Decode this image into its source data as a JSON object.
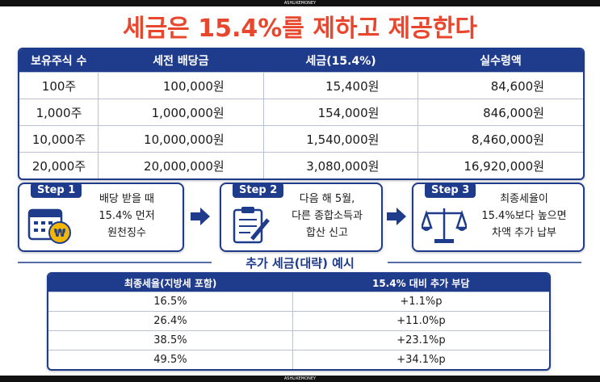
{
  "watermark_top": "ASHLIKEMONEY",
  "watermark_bottom": "ASHLIKEMONEY",
  "header": {
    "title": "세금은 15.4%를 제하고 제공한다"
  },
  "table": {
    "columns": [
      "보유주식 수",
      "세전 배당금",
      "세금(15.4%)",
      "실수령액"
    ],
    "rows": [
      [
        "100주",
        "100,000원",
        "15,400원",
        "84,600원"
      ],
      [
        "1,000주",
        "1,000,000원",
        "154,000원",
        "846,000원"
      ],
      [
        "10,000주",
        "10,000,000원",
        "1,540,000원",
        "8,460,000원"
      ],
      [
        "20,000주",
        "20,000,000원",
        "3,080,000원",
        "16,920,000원"
      ]
    ]
  },
  "steps": [
    {
      "badge": "Step 1",
      "lines": [
        "배당 받을 때",
        "15.4% 먼저",
        "원천징수"
      ]
    },
    {
      "badge": "Step 2",
      "lines": [
        "다음 해 5월,",
        "다른 종합소득과",
        "합산 신고"
      ]
    },
    {
      "badge": "Step 3",
      "lines": [
        "최종세율이",
        "15.4%보다 높으면",
        "차액 추가 납부"
      ]
    }
  ],
  "section": {
    "title": "추가 세금(대략) 예시"
  },
  "table2": {
    "columns": [
      "최종세율(지방세 포함)",
      "15.4% 대비 추가 부담"
    ],
    "rows": [
      [
        "16.5%",
        "+1.1%p"
      ],
      [
        "26.4%",
        "+11.0%p"
      ],
      [
        "38.5%",
        "+23.1%p"
      ],
      [
        "49.5%",
        "+34.1%p"
      ]
    ]
  }
}
